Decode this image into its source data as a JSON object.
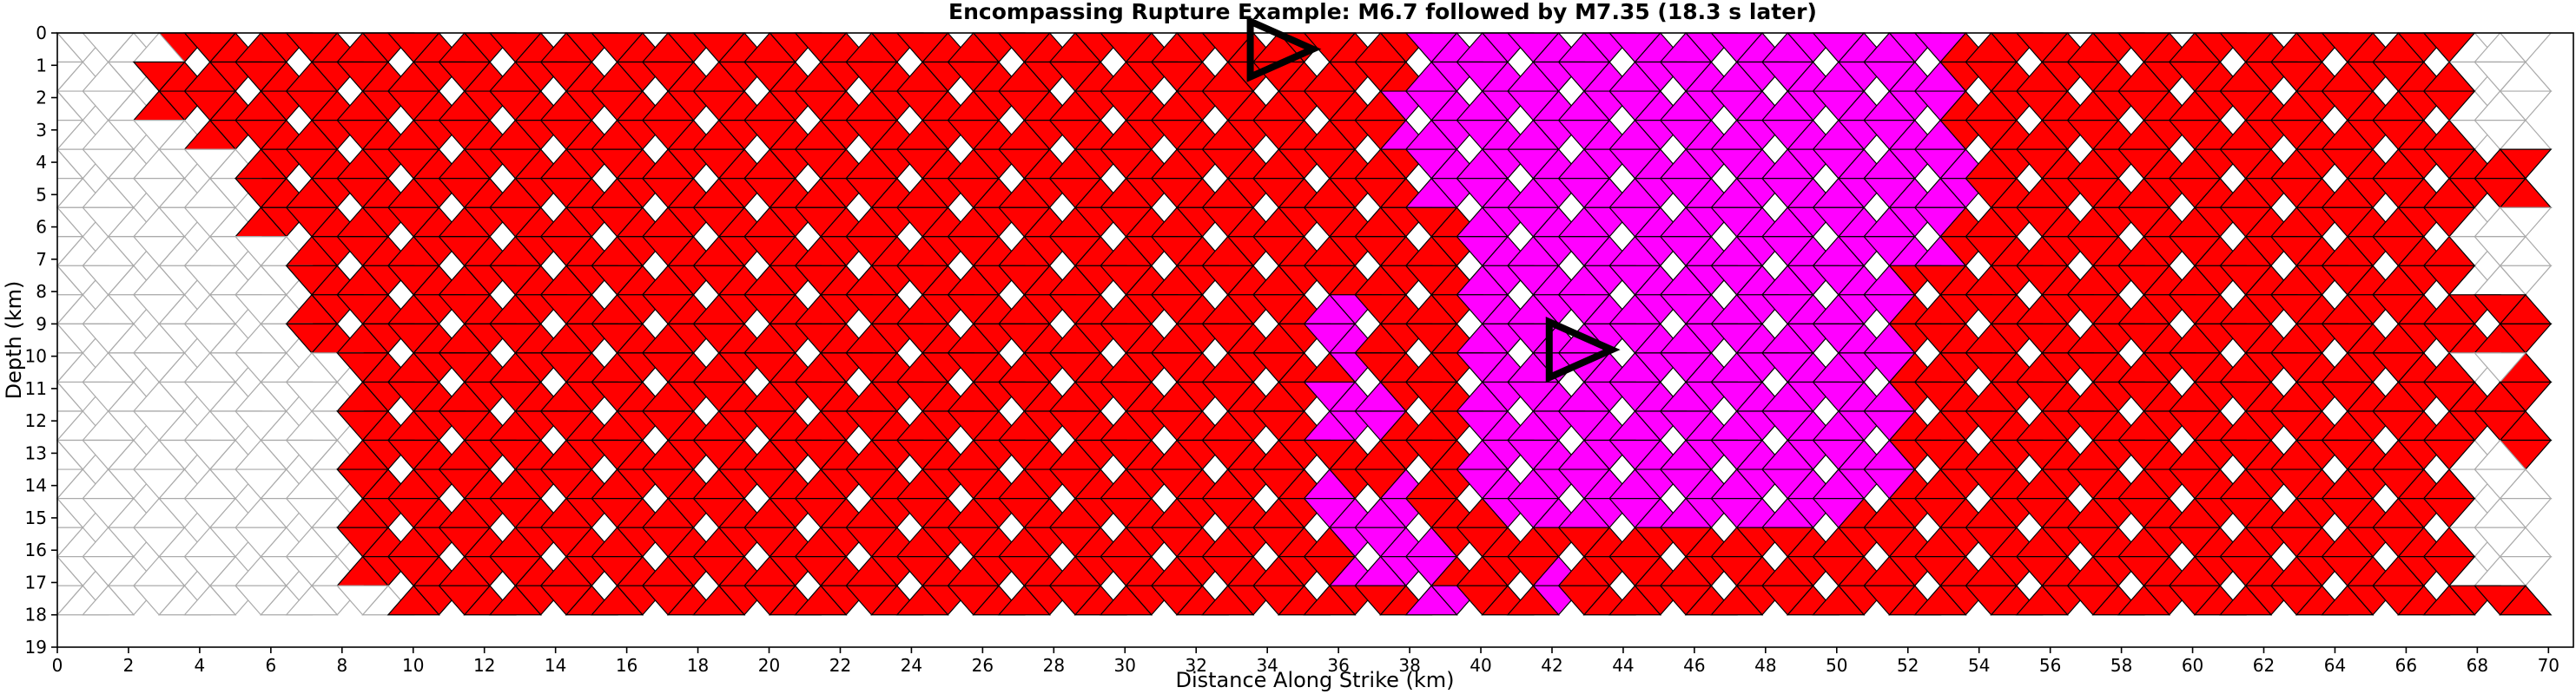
{
  "chart_data": {
    "type": "heatmap",
    "title": "Encompassing Rupture Example: M6.7 followed by M7.35 (18.3 s later)",
    "xlabel": "Distance Along Strike (km)",
    "ylabel": "Depth (km)",
    "xlim": [
      0,
      70.7
    ],
    "ylim": [
      19,
      0
    ],
    "x_ticks": [
      0,
      2,
      4,
      6,
      8,
      10,
      12,
      14,
      16,
      18,
      20,
      22,
      24,
      26,
      28,
      30,
      32,
      34,
      36,
      38,
      40,
      42,
      44,
      46,
      48,
      50,
      52,
      54,
      56,
      58,
      60,
      62,
      64,
      66,
      68,
      70
    ],
    "y_ticks": [
      0,
      1,
      2,
      3,
      4,
      5,
      6,
      7,
      8,
      9,
      10,
      11,
      12,
      13,
      14,
      15,
      16,
      17,
      18,
      19
    ],
    "fault_depth_km": 18,
    "grid": false,
    "regions": [
      {
        "name": "M6.7",
        "color": "#ff0000"
      },
      {
        "name": "M7.35",
        "color": "#ff00ff"
      }
    ],
    "hypocenters": [
      {
        "event": "M6.7",
        "x": 34.4,
        "y": 0.5
      },
      {
        "event": "M7.35",
        "x": 42.8,
        "y": 9.8
      }
    ]
  },
  "colors": {
    "m67": "#ff0000",
    "m735": "#ff00ff",
    "unruptured": "#ffffff",
    "mesh_ruptured": "#000000",
    "mesh_unruptured": "#aaaaaa"
  }
}
